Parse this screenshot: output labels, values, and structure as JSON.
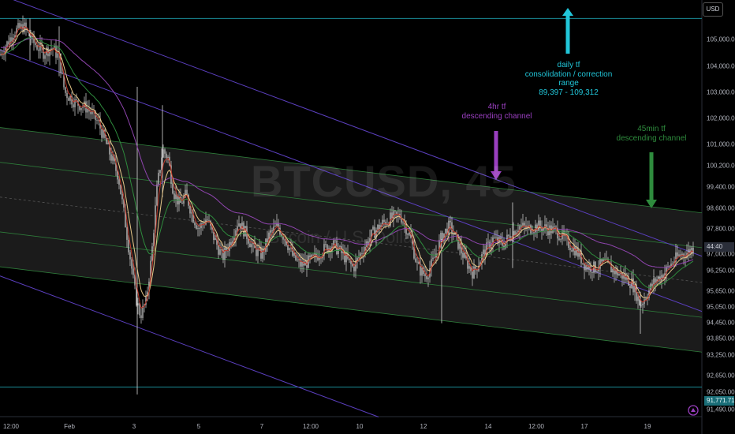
{
  "chart_data": {
    "type": "candlestick",
    "watermark": {
      "symbol": "BTCUSD, 45",
      "description": "Bitcoin / U.S. Dollar"
    },
    "currency": "USD",
    "y_axis": {
      "ticks": [
        "105,000.00",
        "104,000.00",
        "103,000.00",
        "102,000.00",
        "101,000.00",
        "100,200.00",
        "99,400.00",
        "98,600.00",
        "97,800.00",
        "97,000.00",
        "96,250.00",
        "95,650.00",
        "95,050.00",
        "94,450.00",
        "93,850.00",
        "93,250.00",
        "92,650.00",
        "92,050.00",
        "91,490.00"
      ],
      "current_price_label": "44:40",
      "level_label": "91,771.71"
    },
    "x_axis": {
      "ticks": [
        "12:00",
        "Feb",
        "3",
        "5",
        "7",
        "12:00",
        "10",
        "12",
        "14",
        "12:00",
        "17",
        "19"
      ]
    },
    "annotations": [
      {
        "id": "daily",
        "lines": [
          "daily tf",
          "consolidation / correction",
          "range",
          "89,397 - 109,312"
        ],
        "color": "#21c6d9",
        "arrow": "up"
      },
      {
        "id": "h4",
        "lines": [
          "4hr tf",
          "descending channel"
        ],
        "color": "#9a3fc0",
        "arrow": "down"
      },
      {
        "id": "m45",
        "lines": [
          "45min tf",
          "descending channel"
        ],
        "color": "#2e8b3d",
        "arrow": "down"
      }
    ],
    "colors": {
      "background": "#000000",
      "candles": "#d7d7d7",
      "ma_fast": "#c0392b",
      "ma_slow": "#e8c98a",
      "ma_green": "#2e8b3d",
      "ma_purple": "#8e44ad",
      "channel_fill": "#202020",
      "daily_range_line": "#1a8a95",
      "channel_45m": "#2e7d3a",
      "channel_4h": "#5b3fbf"
    },
    "price_path": [
      [
        0,
        104400
      ],
      [
        8,
        104800
      ],
      [
        18,
        105300
      ],
      [
        30,
        105500
      ],
      [
        42,
        104900
      ],
      [
        55,
        104500
      ],
      [
        66,
        104700
      ],
      [
        75,
        104300
      ],
      [
        82,
        103000
      ],
      [
        95,
        102600
      ],
      [
        110,
        102400
      ],
      [
        125,
        101800
      ],
      [
        140,
        100600
      ],
      [
        150,
        99800
      ],
      [
        158,
        98200
      ],
      [
        166,
        96500
      ],
      [
        172,
        95200
      ],
      [
        178,
        94500
      ],
      [
        185,
        95000
      ],
      [
        192,
        96700
      ],
      [
        199,
        99300
      ],
      [
        206,
        100800
      ],
      [
        213,
        100500
      ],
      [
        220,
        99200
      ],
      [
        228,
        98700
      ],
      [
        236,
        99100
      ],
      [
        244,
        98300
      ],
      [
        252,
        97800
      ],
      [
        262,
        98200
      ],
      [
        272,
        97400
      ],
      [
        282,
        96700
      ],
      [
        292,
        97300
      ],
      [
        302,
        98100
      ],
      [
        312,
        97600
      ],
      [
        322,
        97000
      ],
      [
        332,
        96800
      ],
      [
        342,
        97600
      ],
      [
        352,
        97900
      ],
      [
        362,
        97400
      ],
      [
        372,
        96700
      ],
      [
        382,
        96400
      ],
      [
        395,
        96600
      ],
      [
        410,
        97000
      ],
      [
        422,
        97200
      ],
      [
        435,
        96800
      ],
      [
        448,
        96300
      ],
      [
        460,
        97000
      ],
      [
        472,
        97600
      ],
      [
        485,
        98000
      ],
      [
        496,
        98200
      ],
      [
        508,
        98300
      ],
      [
        520,
        97500
      ],
      [
        530,
        96300
      ],
      [
        540,
        96000
      ],
      [
        550,
        96600
      ],
      [
        560,
        97500
      ],
      [
        570,
        97900
      ],
      [
        580,
        97300
      ],
      [
        590,
        96600
      ],
      [
        600,
        96100
      ],
      [
        612,
        96800
      ],
      [
        625,
        97400
      ],
      [
        638,
        97200
      ],
      [
        648,
        97600
      ],
      [
        658,
        97900
      ],
      [
        670,
        97800
      ],
      [
        682,
        97900
      ],
      [
        694,
        97800
      ],
      [
        706,
        97700
      ],
      [
        718,
        97300
      ],
      [
        730,
        97000
      ],
      [
        742,
        96400
      ],
      [
        754,
        96300
      ],
      [
        766,
        96500
      ],
      [
        778,
        96200
      ],
      [
        790,
        96000
      ],
      [
        802,
        95700
      ],
      [
        812,
        94900
      ],
      [
        820,
        95300
      ],
      [
        830,
        95800
      ],
      [
        842,
        96100
      ],
      [
        852,
        96500
      ],
      [
        862,
        96800
      ],
      [
        872,
        96900
      ],
      [
        880,
        97100
      ]
    ],
    "channels": {
      "daily_range": {
        "upper": 105800,
        "lower": 91771.71
      },
      "m45_channel": {
        "start": [
          0,
          101650
        ],
        "end": [
          890,
          98400
        ],
        "width": 5300
      },
      "h4_channel": {
        "start": [
          0,
          104600
        ],
        "end": [
          890,
          94650
        ],
        "width": 8600
      }
    }
  }
}
